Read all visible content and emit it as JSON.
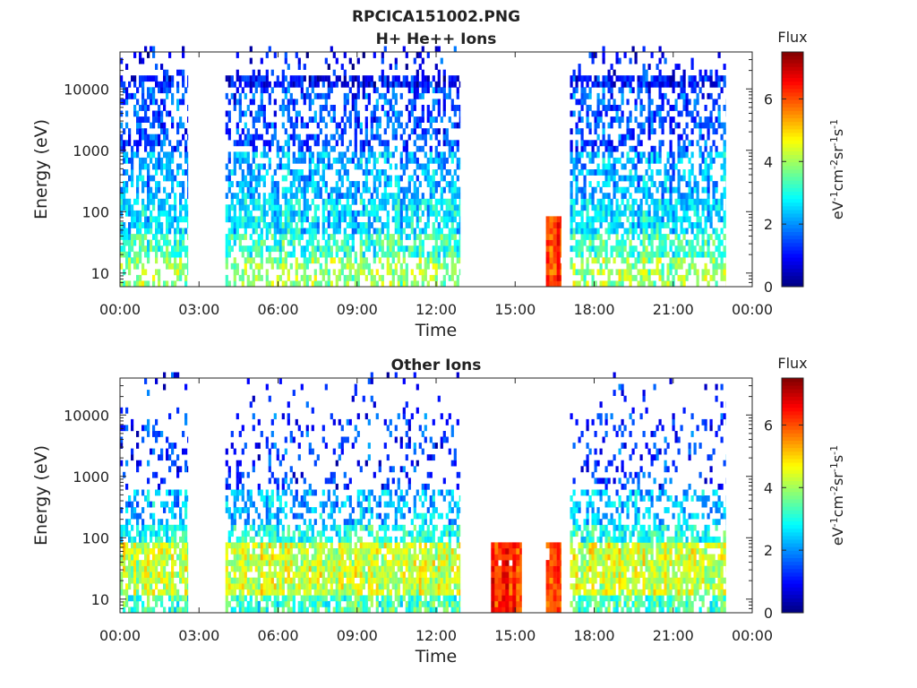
{
  "figure": {
    "title": "RPCICA151002.PNG"
  },
  "chart_data": [
    {
      "type": "heatmap",
      "title": "H+ He++ Ions",
      "xlabel": "Time",
      "ylabel": "Energy (eV)",
      "x_ticks": [
        "00:00",
        "03:00",
        "06:00",
        "09:00",
        "12:00",
        "15:00",
        "18:00",
        "21:00",
        "00:00"
      ],
      "xlim_hours": [
        0,
        24
      ],
      "y_ticks": [
        "10",
        "100",
        "1000",
        "10000"
      ],
      "yscale": "log",
      "ylim": [
        6,
        40000
      ],
      "data_intervals": [
        {
          "start": "00:00",
          "end": "02:35",
          "profile": "hplus"
        },
        {
          "start": "04:00",
          "end": "12:55",
          "profile": "hplus"
        },
        {
          "start": "16:10",
          "end": "16:45",
          "profile": "burst"
        },
        {
          "start": "17:05",
          "end": "23:00",
          "profile": "hplus"
        }
      ],
      "colorbar": {
        "label": "Flux",
        "unit_label": "eV-1cm-2sr-1s-1",
        "ticks": [
          "0",
          "2",
          "4",
          "6"
        ],
        "range": [
          0,
          7.5
        ],
        "colormap": "jet"
      }
    },
    {
      "type": "heatmap",
      "title": "Other Ions",
      "xlabel": "Time",
      "ylabel": "Energy (eV)",
      "x_ticks": [
        "00:00",
        "03:00",
        "06:00",
        "09:00",
        "12:00",
        "15:00",
        "18:00",
        "21:00",
        "00:00"
      ],
      "xlim_hours": [
        0,
        24
      ],
      "y_ticks": [
        "10",
        "100",
        "1000",
        "10000"
      ],
      "yscale": "log",
      "ylim": [
        6,
        40000
      ],
      "data_intervals": [
        {
          "start": "00:00",
          "end": "02:35",
          "profile": "heavy"
        },
        {
          "start": "04:00",
          "end": "12:55",
          "profile": "heavy"
        },
        {
          "start": "14:05",
          "end": "15:15",
          "profile": "burst"
        },
        {
          "start": "16:10",
          "end": "16:45",
          "profile": "burst"
        },
        {
          "start": "17:05",
          "end": "23:00",
          "profile": "heavy"
        }
      ],
      "colorbar": {
        "label": "Flux",
        "unit_label": "eV-1cm-2sr-1s-1",
        "ticks": [
          "0",
          "2",
          "4",
          "6"
        ],
        "range": [
          0,
          7.5
        ],
        "colormap": "jet"
      }
    }
  ]
}
